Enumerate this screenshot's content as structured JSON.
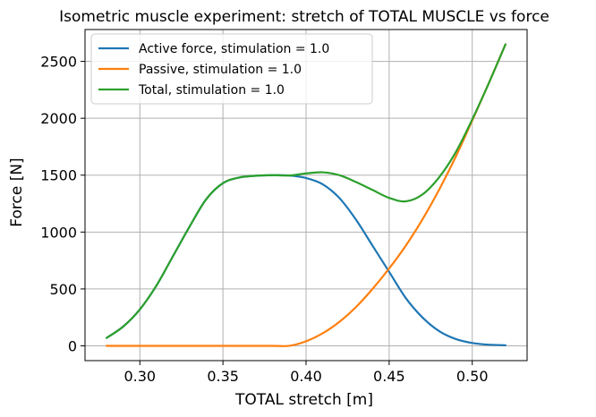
{
  "chart_data": {
    "type": "line",
    "title": "Isometric muscle experiment: stretch of TOTAL MUSCLE vs force",
    "xlabel": "TOTAL stretch [m]",
    "ylabel": "Force [N]",
    "xlim": [
      0.267,
      0.533
    ],
    "ylim": [
      -130,
      2780
    ],
    "xticks": [
      0.3,
      0.35,
      0.4,
      0.45,
      0.5
    ],
    "xtick_labels": [
      "0.30",
      "0.35",
      "0.40",
      "0.45",
      "0.50"
    ],
    "yticks": [
      0,
      500,
      1000,
      1500,
      2000,
      2500
    ],
    "ytick_labels": [
      "0",
      "500",
      "1000",
      "1500",
      "2000",
      "2500"
    ],
    "grid": true,
    "legend_position": "top-left",
    "x": [
      0.28,
      0.29,
      0.3,
      0.31,
      0.32,
      0.33,
      0.34,
      0.35,
      0.36,
      0.37,
      0.38,
      0.39,
      0.4,
      0.41,
      0.42,
      0.43,
      0.44,
      0.45,
      0.46,
      0.47,
      0.48,
      0.49,
      0.5,
      0.51,
      0.52
    ],
    "series": [
      {
        "name": "Active force, stimulation = 1.0",
        "color": "#1f77b4",
        "values": [
          70,
          170,
          320,
          530,
          790,
          1050,
          1290,
          1430,
          1480,
          1495,
          1500,
          1497,
          1475,
          1420,
          1300,
          1110,
          880,
          650,
          420,
          250,
          130,
          60,
          25,
          10,
          5
        ]
      },
      {
        "name": "Passive, stimulation = 1.0",
        "color": "#ff7f0e",
        "values": [
          0,
          0,
          0,
          0,
          0,
          0,
          0,
          0,
          0,
          0,
          0,
          0,
          40,
          110,
          210,
          340,
          500,
          680,
          880,
          1110,
          1370,
          1660,
          1980,
          2310,
          2650
        ]
      },
      {
        "name": "Total, stimulation = 1.0",
        "color": "#2ca02c",
        "values": [
          70,
          170,
          320,
          530,
          790,
          1050,
          1290,
          1430,
          1480,
          1495,
          1500,
          1497,
          1515,
          1525,
          1500,
          1440,
          1370,
          1300,
          1270,
          1330,
          1480,
          1700,
          1990,
          2310,
          2650
        ]
      }
    ]
  }
}
